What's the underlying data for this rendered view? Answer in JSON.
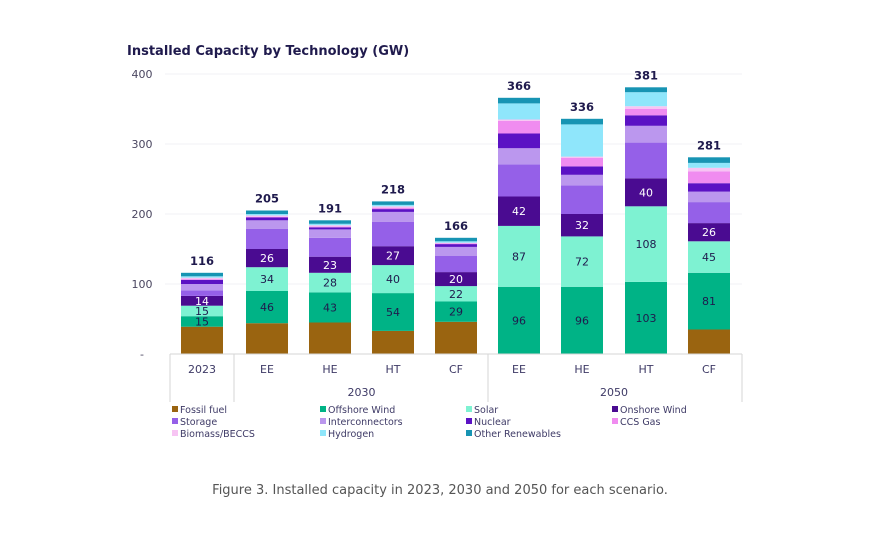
{
  "caption": "Figure 3. Installed capacity in 2023, 2030 and 2050 for each scenario.",
  "chart_data": {
    "type": "bar",
    "stacked": true,
    "title": "Installed Capacity by Technology (GW)",
    "xlabel": "",
    "ylabel": "",
    "ylim": [
      0,
      400
    ],
    "yticks": [
      0,
      100,
      200,
      300,
      400
    ],
    "ytick_labels": [
      "-",
      "100",
      "200",
      "300",
      "400"
    ],
    "grid": true,
    "legend_position": "bottom",
    "categories": [
      "2023",
      "EE",
      "HE",
      "HT",
      "CF",
      "EE",
      "HE",
      "HT",
      "CF"
    ],
    "category_groups": [
      {
        "label": "",
        "members": [
          0
        ]
      },
      {
        "label": "2030",
        "members": [
          1,
          2,
          3,
          4
        ]
      },
      {
        "label": "2050",
        "members": [
          5,
          6,
          7,
          8
        ]
      }
    ],
    "totals": [
      116,
      205,
      191,
      218,
      166,
      366,
      336,
      381,
      281
    ],
    "series": [
      {
        "name": "Fossil fuel",
        "color": "#9a6410",
        "values": [
          39,
          44,
          45,
          33,
          46,
          0,
          0,
          0,
          35
        ],
        "labeled": false
      },
      {
        "name": "Offshore Wind",
        "color": "#00b386",
        "values": [
          15,
          46,
          43,
          54,
          29,
          96,
          96,
          103,
          81
        ],
        "labeled": true,
        "label_color": "#1f1a4d"
      },
      {
        "name": "Solar",
        "color": "#7ef2d2",
        "values": [
          15,
          34,
          28,
          40,
          22,
          87,
          72,
          108,
          45
        ],
        "labeled": true,
        "label_color": "#1f1a4d"
      },
      {
        "name": "Onshore Wind",
        "color": "#4a0b91",
        "values": [
          14,
          26,
          23,
          27,
          20,
          42,
          32,
          40,
          26
        ],
        "labeled": true,
        "label_color": "#ffffff"
      },
      {
        "name": "Storage",
        "color": "#9560e8",
        "values": [
          8,
          29,
          27,
          35,
          23,
          46,
          41,
          51,
          30
        ],
        "labeled": false
      },
      {
        "name": "Interconnectors",
        "color": "#bb97ee",
        "values": [
          9,
          12,
          12,
          14,
          13,
          23,
          15,
          24,
          15
        ],
        "labeled": false
      },
      {
        "name": "Nuclear",
        "color": "#5b12c4",
        "values": [
          6,
          4,
          3,
          4,
          4,
          21,
          12,
          15,
          12
        ],
        "labeled": false
      },
      {
        "name": "CCS Gas",
        "color": "#f08cf0",
        "values": [
          1,
          1,
          1,
          2,
          1,
          18,
          12,
          9,
          17
        ],
        "labeled": false
      },
      {
        "name": "Biomass/BECCS",
        "color": "#f7c4f3",
        "values": [
          2,
          2,
          2,
          2,
          1,
          2,
          2,
          4,
          5
        ],
        "labeled": false
      },
      {
        "name": "Hydrogen",
        "color": "#8fe6fb",
        "values": [
          2,
          2,
          2,
          2,
          2,
          23,
          46,
          20,
          7
        ],
        "labeled": false
      },
      {
        "name": "Other Renewables",
        "color": "#1794b3",
        "values": [
          5,
          5,
          5,
          5,
          5,
          8,
          8,
          7,
          8
        ],
        "labeled": false
      }
    ]
  }
}
